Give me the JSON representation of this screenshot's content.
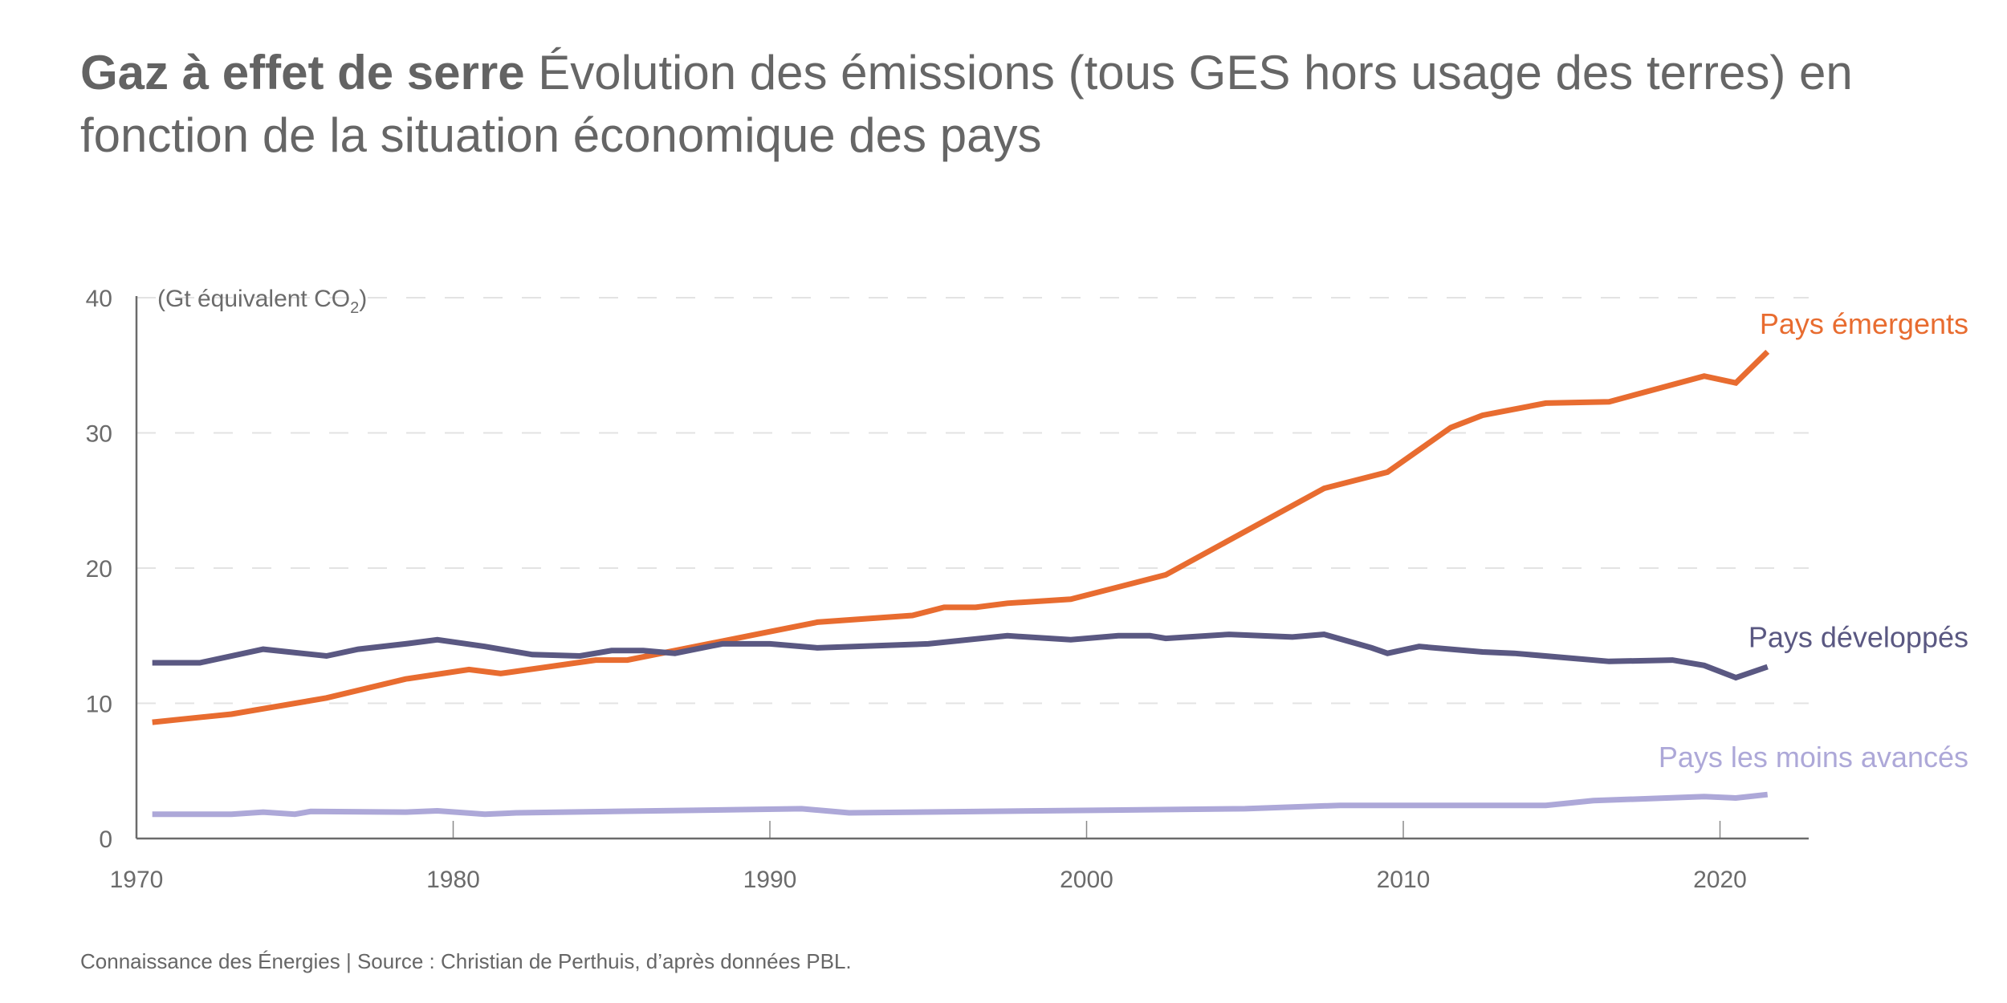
{
  "title": {
    "bold": "Gaz à effet de serre",
    "rest": " Évolution des émissions (tous GES hors usage des terres) en fonction de la situation économique des pays"
  },
  "footer": "Connaissance des Énergies | Source : Christian de Perthuis, d’après données PBL.",
  "chart_data": {
    "type": "line",
    "title": "Gaz à effet de serre Évolution des émissions (tous GES hors usage des terres) en fonction de la situation économique des pays",
    "ylabel": "(Gt équivalent CO",
    "ylabel_sub": "2",
    "ylabel_end": ")",
    "xlabel": "",
    "xlim": [
      1970,
      2022.8
    ],
    "ylim": [
      0,
      40
    ],
    "x_ticks": [
      1970,
      1980,
      1990,
      2000,
      2010,
      2020
    ],
    "x_tick_labels": [
      "1970",
      "1980",
      "1990",
      "2000",
      "2010",
      "2020"
    ],
    "y_ticks": [
      0,
      10,
      20,
      30,
      40
    ],
    "y_tick_labels": [
      "0",
      "10",
      "20",
      "30",
      "40"
    ],
    "grid": "horizontal dashed",
    "legend": "inline labels at right end of lines",
    "series": [
      {
        "name": "Pays émergents",
        "color": "#E86C30",
        "points": [
          [
            1970.5,
            8.6
          ],
          [
            1973,
            9.2
          ],
          [
            1976,
            10.4
          ],
          [
            1978.5,
            11.8
          ],
          [
            1980.5,
            12.5
          ],
          [
            1981.5,
            12.2
          ],
          [
            1984.5,
            13.2
          ],
          [
            1985.5,
            13.2
          ],
          [
            1990,
            15.3
          ],
          [
            1991.5,
            16.0
          ],
          [
            1994.5,
            16.5
          ],
          [
            1995.5,
            17.1
          ],
          [
            1996.5,
            17.1
          ],
          [
            1997.5,
            17.4
          ],
          [
            1999.5,
            17.7
          ],
          [
            2002.5,
            19.5
          ],
          [
            2007.5,
            25.9
          ],
          [
            2009.5,
            27.1
          ],
          [
            2011.5,
            30.4
          ],
          [
            2012.5,
            31.3
          ],
          [
            2014.5,
            32.2
          ],
          [
            2016.5,
            32.3
          ],
          [
            2019.5,
            34.2
          ],
          [
            2020.5,
            33.7
          ],
          [
            2021.5,
            36.0
          ]
        ]
      },
      {
        "name": "Pays développés",
        "color": "#5A5882",
        "points": [
          [
            1970.5,
            13.0
          ],
          [
            1972,
            13.0
          ],
          [
            1974,
            14.0
          ],
          [
            1976,
            13.5
          ],
          [
            1977,
            14.0
          ],
          [
            1978.5,
            14.4
          ],
          [
            1979.5,
            14.7
          ],
          [
            1981,
            14.2
          ],
          [
            1982.5,
            13.6
          ],
          [
            1984,
            13.5
          ],
          [
            1985,
            13.9
          ],
          [
            1986,
            13.9
          ],
          [
            1987,
            13.7
          ],
          [
            1988.5,
            14.4
          ],
          [
            1990,
            14.4
          ],
          [
            1991.5,
            14.1
          ],
          [
            1995,
            14.4
          ],
          [
            1997.5,
            15.0
          ],
          [
            1999.5,
            14.7
          ],
          [
            2001,
            15.0
          ],
          [
            2002,
            15.0
          ],
          [
            2002.5,
            14.8
          ],
          [
            2004.5,
            15.1
          ],
          [
            2006.5,
            14.9
          ],
          [
            2007.5,
            15.1
          ],
          [
            2009,
            14.1
          ],
          [
            2009.5,
            13.7
          ],
          [
            2010.5,
            14.2
          ],
          [
            2012.5,
            13.8
          ],
          [
            2013.5,
            13.7
          ],
          [
            2016.5,
            13.1
          ],
          [
            2018.5,
            13.2
          ],
          [
            2019.5,
            12.8
          ],
          [
            2020.5,
            11.9
          ],
          [
            2021.5,
            12.7
          ]
        ]
      },
      {
        "name": "Pays les moins avancés",
        "color": "#ADA8D8",
        "points": [
          [
            1970.5,
            1.8
          ],
          [
            1973,
            1.8
          ],
          [
            1974,
            1.95
          ],
          [
            1975,
            1.8
          ],
          [
            1975.5,
            2.0
          ],
          [
            1978.5,
            1.95
          ],
          [
            1979.5,
            2.05
          ],
          [
            1981,
            1.8
          ],
          [
            1982,
            1.9
          ],
          [
            1991,
            2.2
          ],
          [
            1992.5,
            1.9
          ],
          [
            2005,
            2.2
          ],
          [
            2008,
            2.45
          ],
          [
            2014.5,
            2.45
          ],
          [
            2016,
            2.8
          ],
          [
            2019.5,
            3.1
          ],
          [
            2020.5,
            3.0
          ],
          [
            2021.5,
            3.25
          ]
        ]
      }
    ]
  }
}
